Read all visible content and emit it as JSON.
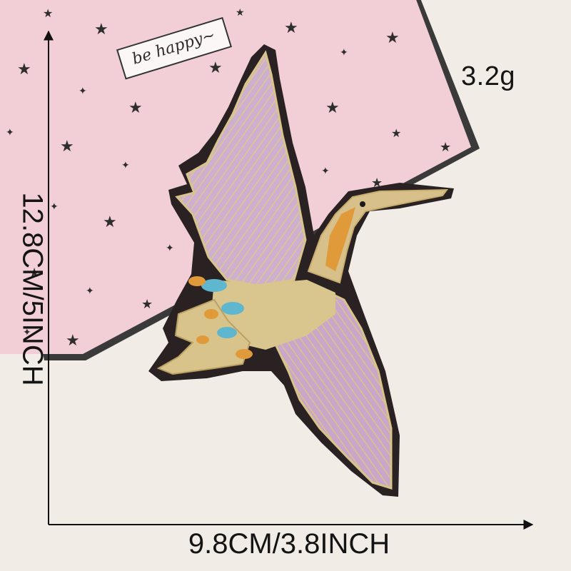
{
  "photo": {
    "subject": "embroidered crane patch",
    "background_color": "#f1ece6",
    "card_color": "#f2cfd6",
    "card_tag_text": "be happy~"
  },
  "measurements": {
    "width_label": "9.8CM/3.8INCH",
    "height_label": "12.8CM/5INCH",
    "weight_label": "3.2g"
  },
  "colors": {
    "gold_thread": "#d8c48a",
    "lilac_thread": "#c9a9cc",
    "orange_thread": "#e09a3a",
    "blue_thread": "#5fb7cf",
    "felt_backing": "#2a2222"
  }
}
